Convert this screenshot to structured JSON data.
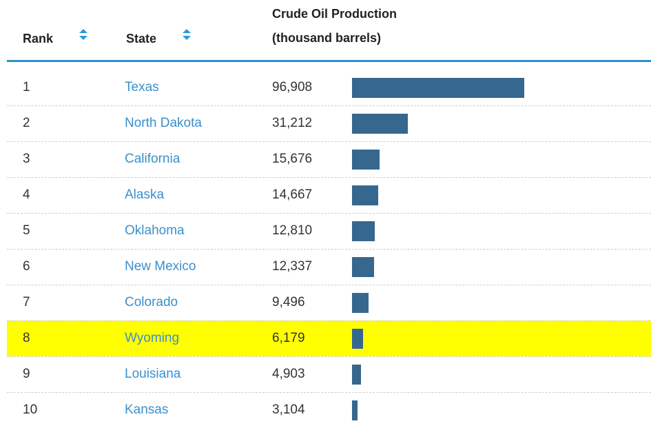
{
  "table": {
    "headers": {
      "rank": "Rank",
      "state": "State",
      "production": [
        "Crude Oil Production",
        "(thousand barrels)"
      ]
    },
    "rows": [
      {
        "rank": "1",
        "state": "Texas",
        "value": 96908,
        "value_label": "96,908"
      },
      {
        "rank": "2",
        "state": "North Dakota",
        "value": 31212,
        "value_label": "31,212"
      },
      {
        "rank": "3",
        "state": "California",
        "value": 15676,
        "value_label": "15,676"
      },
      {
        "rank": "4",
        "state": "Alaska",
        "value": 14667,
        "value_label": "14,667"
      },
      {
        "rank": "5",
        "state": "Oklahoma",
        "value": 12810,
        "value_label": "12,810"
      },
      {
        "rank": "6",
        "state": "New Mexico",
        "value": 12337,
        "value_label": "12,337"
      },
      {
        "rank": "7",
        "state": "Colorado",
        "value": 9496,
        "value_label": "9,496"
      },
      {
        "rank": "8",
        "state": "Wyoming",
        "value": 6179,
        "value_label": "6,179",
        "highlight": true
      },
      {
        "rank": "9",
        "state": "Louisiana",
        "value": 4903,
        "value_label": "4,903"
      },
      {
        "rank": "10",
        "state": "Kansas",
        "value": 3104,
        "value_label": "3,104"
      }
    ],
    "bar_color": "#35678f",
    "highlight_color": "#ffff00"
  }
}
